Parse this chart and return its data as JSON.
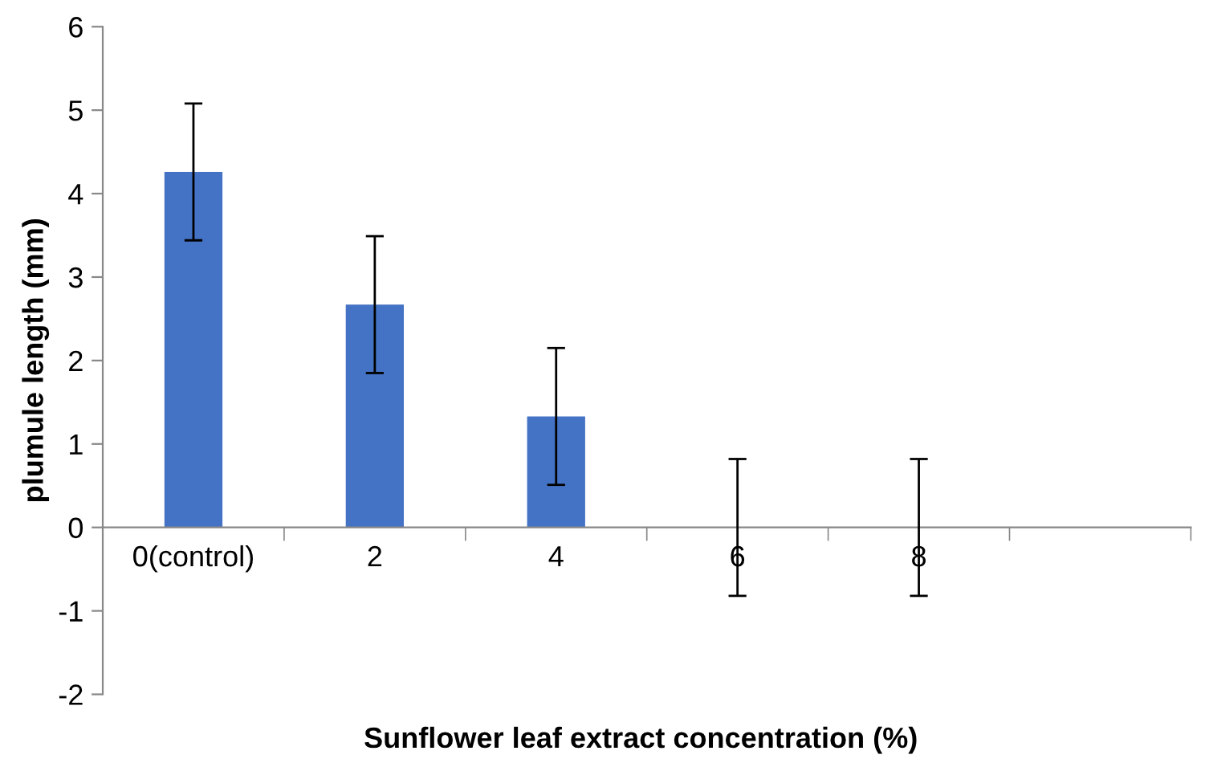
{
  "chart_data": {
    "type": "bar",
    "xlabel": "Sunflower leaf extract concentration (%)",
    "ylabel": "plumule length (mm)",
    "categories": [
      "0(control)",
      "2",
      "4",
      "6",
      "8",
      null
    ],
    "values": [
      4.26,
      2.67,
      1.33,
      0,
      0,
      null
    ],
    "errors": [
      0.82,
      0.82,
      0.82,
      0.82,
      0.82,
      null
    ],
    "color": "#4472c4",
    "ylim": [
      -2,
      6
    ],
    "yticks": [
      -2,
      -1,
      0,
      1,
      2,
      3,
      4,
      5,
      6
    ],
    "grid": false
  }
}
